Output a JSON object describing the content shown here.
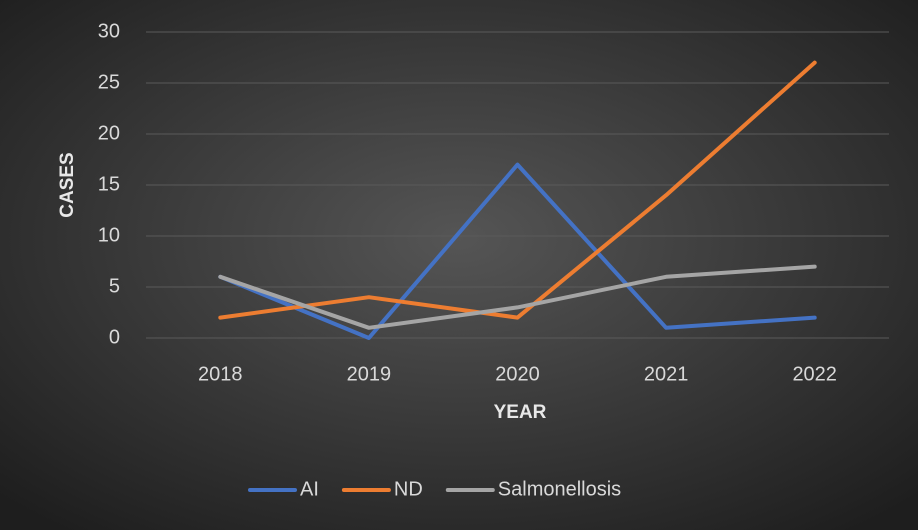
{
  "chart_data": {
    "type": "line",
    "categories": [
      "2018",
      "2019",
      "2020",
      "2021",
      "2022"
    ],
    "series": [
      {
        "name": "AI",
        "color": "#4472c4",
        "values": [
          6,
          0,
          17,
          1,
          2
        ]
      },
      {
        "name": "ND",
        "color": "#ed7d31",
        "values": [
          2,
          4,
          2,
          14,
          27
        ]
      },
      {
        "name": "Salmonellosis",
        "color": "#a5a5a5",
        "values": [
          6,
          1,
          3,
          6,
          7
        ]
      }
    ],
    "x_label": "YEAR",
    "y_label": "CASES",
    "ylim": [
      0,
      30
    ],
    "yticks": [
      0,
      5,
      10,
      15,
      20,
      25,
      30
    ],
    "grid": true,
    "legend": "bottom"
  }
}
